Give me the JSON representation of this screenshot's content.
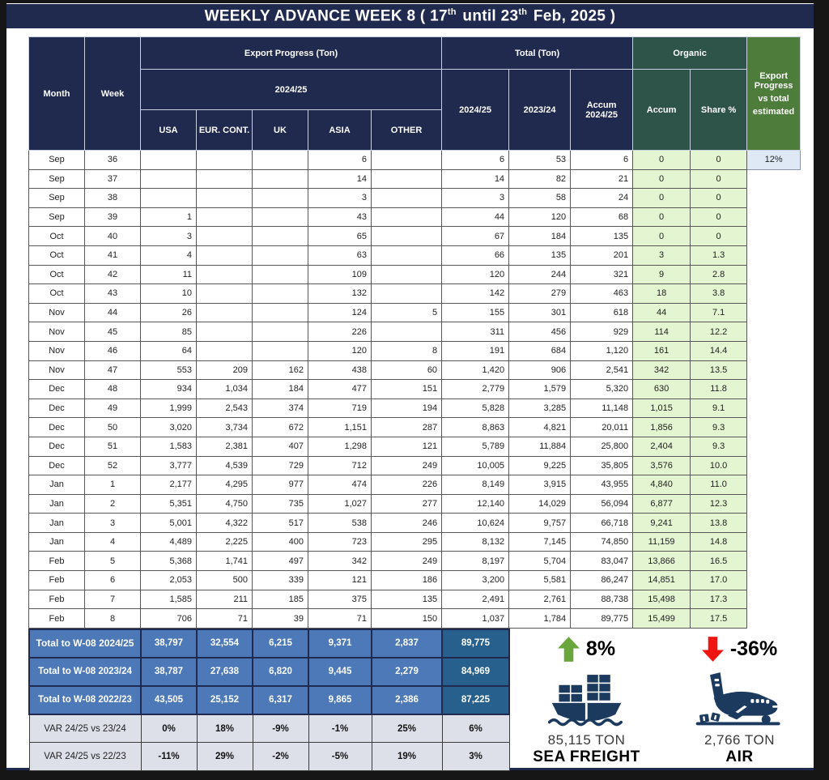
{
  "title": {
    "part1": "WEEKLY ADVANCE WEEK 8 ( 17",
    "sup1": "th",
    "part2": " until 23",
    "sup2": "th",
    "part3": " Feb, 2025 )"
  },
  "colors": {
    "navy": "#1f2a4e",
    "teal": "#2e5449",
    "green": "#4e7c3b",
    "organic-cell": "#e4f5d1",
    "progress-cell": "#dfe9f5",
    "total-row": "#4d79b8",
    "total-accent": "#27608c",
    "var-row": "#dde0e9",
    "up-green": "#6aa63c",
    "down-red": "#ee1512",
    "icon-navy": "#1b3a5e"
  },
  "table": {
    "headers": {
      "month": "Month",
      "week": "Week",
      "export_progress": "Export Progress (Ton)",
      "season": "2024/25",
      "regions": [
        "USA",
        "EUR. CONT.",
        "UK",
        "ASIA",
        "OTHER"
      ],
      "total": "Total (Ton)",
      "total_cols": [
        "2024/25",
        "2023/24",
        "Accum 2024/25"
      ],
      "organic": "Organic",
      "organic_cols": [
        "Accum",
        "Share %"
      ],
      "progress_lines": [
        "Export Progress",
        "vs total",
        "estimated"
      ]
    },
    "rows": [
      [
        "Sep",
        "36",
        "",
        "",
        "",
        "6",
        "",
        "6",
        "53",
        "6",
        "0",
        "0",
        "12%"
      ],
      [
        "Sep",
        "37",
        "",
        "",
        "",
        "14",
        "",
        "14",
        "82",
        "21",
        "0",
        "0",
        ""
      ],
      [
        "Sep",
        "38",
        "",
        "",
        "",
        "3",
        "",
        "3",
        "58",
        "24",
        "0",
        "0",
        ""
      ],
      [
        "Sep",
        "39",
        "1",
        "",
        "",
        "43",
        "",
        "44",
        "120",
        "68",
        "0",
        "0",
        ""
      ],
      [
        "Oct",
        "40",
        "3",
        "",
        "",
        "65",
        "",
        "67",
        "184",
        "135",
        "0",
        "0",
        ""
      ],
      [
        "Oct",
        "41",
        "4",
        "",
        "",
        "63",
        "",
        "66",
        "135",
        "201",
        "3",
        "1.3",
        ""
      ],
      [
        "Oct",
        "42",
        "11",
        "",
        "",
        "109",
        "",
        "120",
        "244",
        "321",
        "9",
        "2.8",
        ""
      ],
      [
        "Oct",
        "43",
        "10",
        "",
        "",
        "132",
        "",
        "142",
        "279",
        "463",
        "18",
        "3.8",
        ""
      ],
      [
        "Nov",
        "44",
        "26",
        "",
        "",
        "124",
        "5",
        "155",
        "301",
        "618",
        "44",
        "7.1",
        ""
      ],
      [
        "Nov",
        "45",
        "85",
        "",
        "",
        "226",
        "",
        "311",
        "456",
        "929",
        "114",
        "12.2",
        ""
      ],
      [
        "Nov",
        "46",
        "64",
        "",
        "",
        "120",
        "8",
        "191",
        "684",
        "1,120",
        "161",
        "14.4",
        ""
      ],
      [
        "Nov",
        "47",
        "553",
        "209",
        "162",
        "438",
        "60",
        "1,420",
        "906",
        "2,541",
        "342",
        "13.5",
        ""
      ],
      [
        "Dec",
        "48",
        "934",
        "1,034",
        "184",
        "477",
        "151",
        "2,779",
        "1,579",
        "5,320",
        "630",
        "11.8",
        ""
      ],
      [
        "Dec",
        "49",
        "1,999",
        "2,543",
        "374",
        "719",
        "194",
        "5,828",
        "3,285",
        "11,148",
        "1,015",
        "9.1",
        ""
      ],
      [
        "Dec",
        "50",
        "3,020",
        "3,734",
        "672",
        "1,151",
        "287",
        "8,863",
        "4,821",
        "20,011",
        "1,856",
        "9.3",
        ""
      ],
      [
        "Dec",
        "51",
        "1,583",
        "2,381",
        "407",
        "1,298",
        "121",
        "5,789",
        "11,884",
        "25,800",
        "2,404",
        "9.3",
        ""
      ],
      [
        "Dec",
        "52",
        "3,777",
        "4,539",
        "729",
        "712",
        "249",
        "10,005",
        "9,225",
        "35,805",
        "3,576",
        "10.0",
        ""
      ],
      [
        "Jan",
        "1",
        "2,177",
        "4,295",
        "977",
        "474",
        "226",
        "8,149",
        "3,915",
        "43,955",
        "4,840",
        "11.0",
        ""
      ],
      [
        "Jan",
        "2",
        "5,351",
        "4,750",
        "735",
        "1,027",
        "277",
        "12,140",
        "14,029",
        "56,094",
        "6,877",
        "12.3",
        ""
      ],
      [
        "Jan",
        "3",
        "5,001",
        "4,322",
        "517",
        "538",
        "246",
        "10,624",
        "9,757",
        "66,718",
        "9,241",
        "13.8",
        ""
      ],
      [
        "Jan",
        "4",
        "4,489",
        "2,225",
        "400",
        "723",
        "295",
        "8,132",
        "7,145",
        "74,850",
        "11,159",
        "14.8",
        ""
      ],
      [
        "Feb",
        "5",
        "5,368",
        "1,741",
        "497",
        "342",
        "249",
        "8,197",
        "5,704",
        "83,047",
        "13,866",
        "16.5",
        ""
      ],
      [
        "Feb",
        "6",
        "2,053",
        "500",
        "339",
        "121",
        "186",
        "3,200",
        "5,581",
        "86,247",
        "14,851",
        "17.0",
        ""
      ],
      [
        "Feb",
        "7",
        "1,585",
        "211",
        "185",
        "375",
        "135",
        "2,491",
        "2,761",
        "88,738",
        "15,498",
        "17.3",
        ""
      ],
      [
        "Feb",
        "8",
        "706",
        "71",
        "39",
        "71",
        "150",
        "1,037",
        "1,784",
        "89,775",
        "15,499",
        "17.5",
        ""
      ]
    ],
    "footer": [
      {
        "label": "Total to W-08 2024/25",
        "values": [
          "38,797",
          "32,554",
          "6,215",
          "9,371",
          "2,837",
          "89,775"
        ],
        "type": "total"
      },
      {
        "label": "Total to W-08 2023/24",
        "values": [
          "38,787",
          "27,638",
          "6,820",
          "9,445",
          "2,279",
          "84,969"
        ],
        "type": "total"
      },
      {
        "label": "Total to W-08 2022/23",
        "values": [
          "43,505",
          "25,152",
          "6,317",
          "9,865",
          "2,386",
          "87,225"
        ],
        "type": "total"
      },
      {
        "label": "VAR 24/25 vs 23/24",
        "values": [
          "0%",
          "18%",
          "-9%",
          "-1%",
          "25%",
          "6%"
        ],
        "type": "var"
      },
      {
        "label": "VAR 24/25 vs 22/23",
        "values": [
          "-11%",
          "29%",
          "-2%",
          "-5%",
          "19%",
          "3%"
        ],
        "type": "var"
      }
    ]
  },
  "summary": {
    "sea": {
      "change": "8%",
      "tons": "85,115 TON",
      "label": "SEA FREIGHT",
      "trend": "up"
    },
    "air": {
      "change": "-36%",
      "tons": "2,766 TON",
      "label": "AIR",
      "trend": "down"
    }
  }
}
